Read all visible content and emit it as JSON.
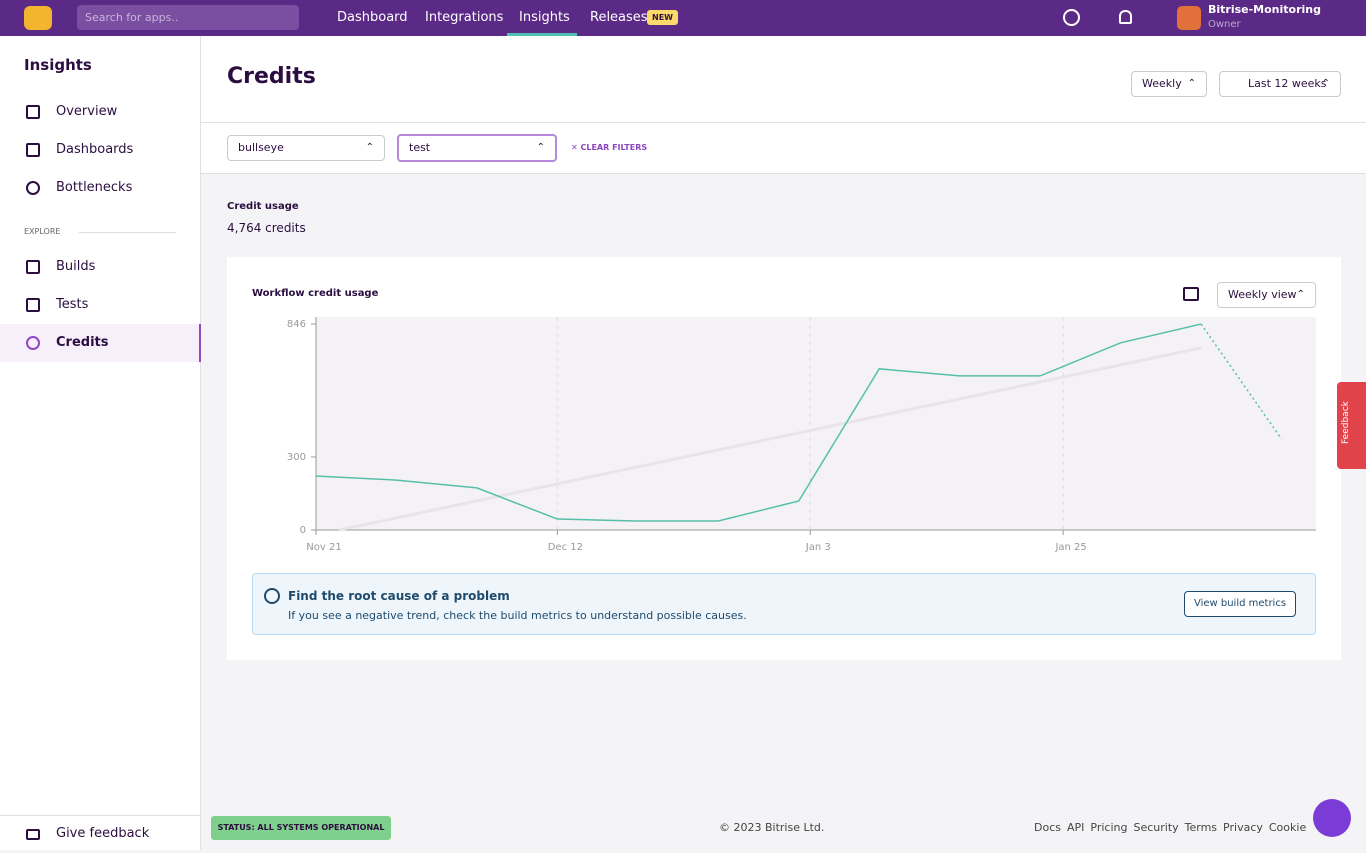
{
  "nav": {
    "search_placeholder": "Search for apps..",
    "links": [
      "Dashboard",
      "Integrations",
      "Insights",
      "Releases"
    ],
    "badge": "NEW",
    "org": "Bitrise-Monitoring",
    "role": "Owner"
  },
  "sidebar": {
    "title": "Insights",
    "items": [
      "Overview",
      "Dashboards",
      "Bottlenecks"
    ],
    "section": "EXPLORE",
    "explore": [
      "Builds",
      "Tests",
      "Credits"
    ],
    "feedback": "Give feedback"
  },
  "header": {
    "title": "Credits",
    "period": "Weekly",
    "range": "Last 12 weeks"
  },
  "filters": {
    "selects": [
      "bullseye",
      "test"
    ],
    "clear": "CLEAR FILTERS"
  },
  "summary": {
    "label": "Credit usage",
    "value": "4,764 credits"
  },
  "chart_data": {
    "type": "line",
    "title": "Workflow credit usage",
    "view": "Weekly view",
    "x": [
      0,
      7,
      14,
      21,
      28,
      35,
      42,
      49,
      56,
      63,
      70,
      77,
      84
    ],
    "series": [
      {
        "color": "#56bfa8",
        "values": [
          222,
          205,
          173,
          45,
          37,
          37,
          119,
          662,
          633,
          633,
          769,
          846,
          374
        ],
        "dotted_from": 11
      }
    ],
    "trend": {
      "color": "#e8e4e9",
      "x": [
        2,
        77
      ],
      "values": [
        0,
        748
      ]
    },
    "xlim": [
      0,
      87
    ],
    "ylim": [
      0,
      875
    ],
    "yticks": [
      0,
      300,
      846
    ],
    "xticks": [
      {
        "value": 0,
        "label": "Nov 21"
      },
      {
        "value": 21,
        "label": "Dec 12"
      },
      {
        "value": 43,
        "label": "Jan 3"
      },
      {
        "value": 65,
        "label": "Jan 25"
      }
    ],
    "grid": true
  },
  "callout": {
    "title": "Find the root cause of a problem",
    "text": "If you see a negative trend, check the build metrics to understand possible causes.",
    "button": "View build metrics"
  },
  "footer": {
    "status": "STATUS: ALL SYSTEMS OPERATIONAL",
    "copyright": "© 2023 Bitrise Ltd.",
    "links": [
      "Docs",
      "API",
      "Pricing",
      "Security",
      "Terms",
      "Privacy",
      "Cookie"
    ]
  },
  "feedback_tab": "Feedback"
}
